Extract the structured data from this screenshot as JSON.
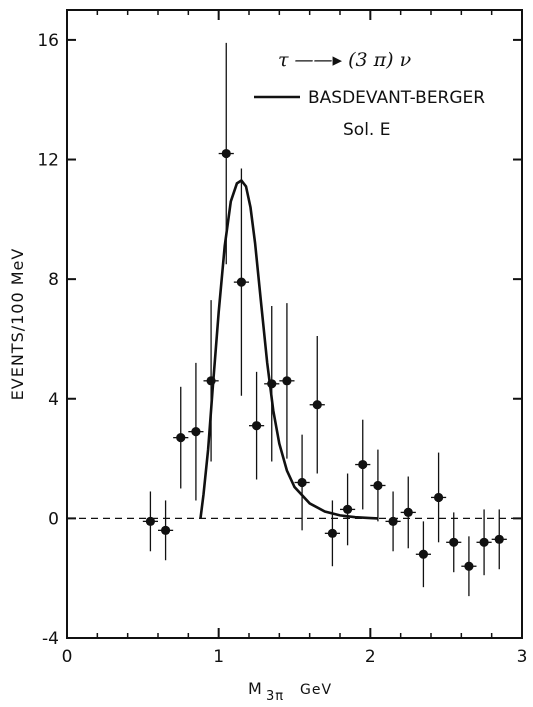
{
  "chart_data": {
    "type": "scatter",
    "title": "",
    "xlabel": "M",
    "xlabel_sub": "3π",
    "xlabel_unit": "GeV",
    "ylabel": "EVENTS/100 MeV",
    "xlim": [
      0,
      3
    ],
    "ylim": [
      -4,
      17
    ],
    "x_ticks": [
      0,
      1,
      2,
      3
    ],
    "x_tick_labels": [
      "0",
      "1",
      "2",
      "3"
    ],
    "y_ticks": [
      -4,
      0,
      4,
      8,
      12,
      16
    ],
    "y_tick_labels": [
      "-4",
      "0",
      "4",
      "8",
      "12",
      "16"
    ],
    "x_minor_ticks": [
      0.2,
      0.4,
      0.6,
      0.8,
      1.2,
      1.4,
      1.6,
      1.8,
      2.2,
      2.4,
      2.6,
      2.8
    ],
    "grid": false,
    "reference_line": {
      "y": 0,
      "style": "dashed"
    },
    "annotations": {
      "process": "τ ——▸ (3 π) ν",
      "legend_label": "BASDEVANT-BERGER",
      "legend_sublabel": "Sol. E"
    },
    "series": [
      {
        "name": "BASDEVANT-BERGER",
        "kind": "line",
        "x": [
          0.88,
          0.9,
          0.93,
          0.96,
          1.0,
          1.04,
          1.08,
          1.12,
          1.15,
          1.18,
          1.21,
          1.24,
          1.28,
          1.32,
          1.36,
          1.4,
          1.45,
          1.5,
          1.6,
          1.7,
          1.8,
          1.9,
          2.0,
          2.05
        ],
        "y": [
          0.0,
          0.8,
          2.3,
          4.3,
          6.9,
          9.1,
          10.6,
          11.2,
          11.3,
          11.1,
          10.4,
          9.2,
          7.2,
          5.2,
          3.6,
          2.5,
          1.6,
          1.05,
          0.5,
          0.23,
          0.1,
          0.04,
          0.01,
          0.0
        ]
      },
      {
        "name": "",
        "kind": "points",
        "x": [
          0.55,
          0.65,
          0.75,
          0.85,
          0.95,
          1.05,
          1.15,
          1.25,
          1.35,
          1.45,
          1.55,
          1.65,
          1.75,
          1.85,
          1.95,
          2.05,
          2.15,
          2.25,
          2.35,
          2.45,
          2.55,
          2.65,
          2.75,
          2.85
        ],
        "y": [
          -0.1,
          -0.4,
          2.7,
          2.9,
          4.6,
          12.2,
          7.9,
          3.1,
          4.5,
          4.6,
          1.2,
          3.8,
          -0.5,
          0.3,
          1.8,
          1.1,
          -0.1,
          0.2,
          -1.2,
          0.7,
          -0.8,
          -1.6,
          -0.8,
          -0.7
        ],
        "y_err": [
          1.0,
          1.0,
          1.7,
          2.3,
          2.7,
          3.7,
          3.8,
          1.8,
          2.6,
          2.6,
          1.6,
          2.3,
          1.1,
          1.2,
          1.5,
          1.2,
          1.0,
          1.2,
          1.1,
          1.5,
          1.0,
          1.0,
          1.1,
          1.0
        ],
        "x_halfwidth": 0.05
      }
    ]
  }
}
